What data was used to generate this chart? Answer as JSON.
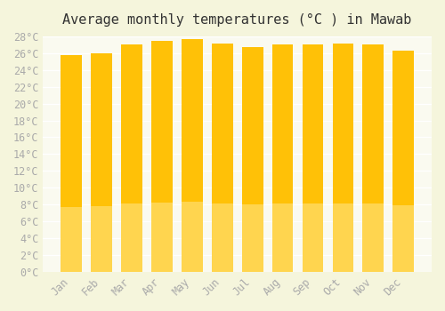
{
  "title": "Average monthly temperatures (°C ) in Mawab",
  "months": [
    "Jan",
    "Feb",
    "Mar",
    "Apr",
    "May",
    "Jun",
    "Jul",
    "Aug",
    "Sep",
    "Oct",
    "Nov",
    "Dec"
  ],
  "temperatures": [
    25.8,
    26.0,
    27.0,
    27.5,
    27.7,
    27.1,
    26.7,
    27.0,
    27.0,
    27.1,
    27.0,
    26.3
  ],
  "bar_color_top": "#FFC107",
  "bar_color_bottom": "#FFD54F",
  "ylim": [
    0,
    28
  ],
  "ytick_step": 2,
  "background_color": "#F5F5DC",
  "plot_bg_color": "#FAFAF0",
  "grid_color": "#FFFFFF",
  "title_fontsize": 11,
  "tick_fontsize": 8.5,
  "tick_label_color": "#AAAAAA"
}
